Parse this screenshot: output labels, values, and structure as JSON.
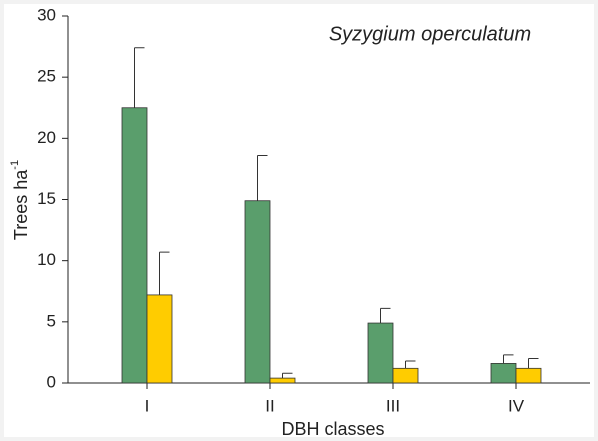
{
  "chart_data": {
    "type": "bar",
    "title": "Syzygium operculatum",
    "xlabel": "DBH classes",
    "ylabel": {
      "text": "Trees ha",
      "sup": "-1"
    },
    "categories": [
      "I",
      "II",
      "III",
      "IV"
    ],
    "series": [
      {
        "color": "#5a9e6c",
        "values": [
          22.5,
          14.9,
          4.9,
          1.6
        ],
        "errors": [
          4.9,
          3.7,
          1.2,
          0.7
        ]
      },
      {
        "color": "#ffcc00",
        "values": [
          7.2,
          0.4,
          1.2,
          1.2
        ],
        "errors": [
          3.5,
          0.4,
          0.6,
          0.8
        ]
      }
    ],
    "ylim": [
      0,
      30
    ],
    "yticks": [
      0,
      5,
      10,
      15,
      20,
      25,
      30
    ]
  }
}
